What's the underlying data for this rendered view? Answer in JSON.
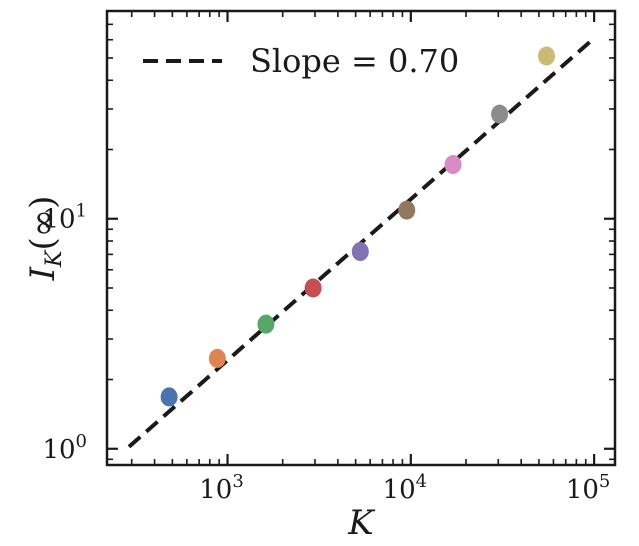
{
  "chart_data": {
    "type": "scatter",
    "title": "",
    "xlabel": "K",
    "ylabel": "I_K(∞)",
    "x_scale": "log",
    "y_scale": "log",
    "xlim": [
      220,
      130000
    ],
    "ylim": [
      0.85,
      80
    ],
    "grid": false,
    "legend_position": "top-left",
    "x_ticks": [
      {
        "value": 1000,
        "base": "10",
        "exp": "3"
      },
      {
        "value": 10000,
        "base": "10",
        "exp": "4"
      },
      {
        "value": 100000,
        "base": "10",
        "exp": "5"
      }
    ],
    "y_ticks": [
      {
        "value": 1,
        "base": "10",
        "exp": "0"
      },
      {
        "value": 10,
        "base": "10",
        "exp": "1"
      }
    ],
    "points": [
      {
        "x": 480,
        "y": 1.68,
        "color": "#4c72b0"
      },
      {
        "x": 880,
        "y": 2.47,
        "color": "#dd8452"
      },
      {
        "x": 1620,
        "y": 3.48,
        "color": "#55a868"
      },
      {
        "x": 2930,
        "y": 5.0,
        "color": "#c44e52"
      },
      {
        "x": 5300,
        "y": 7.2,
        "color": "#8172b3"
      },
      {
        "x": 9500,
        "y": 10.9,
        "color": "#937860"
      },
      {
        "x": 17000,
        "y": 17.2,
        "color": "#da8bc3"
      },
      {
        "x": 30500,
        "y": 28.5,
        "color": "#8c8c8c"
      },
      {
        "x": 55000,
        "y": 51.0,
        "color": "#ccb974"
      }
    ],
    "fit_line": {
      "label": "Slope = 0.70",
      "slope": 0.7,
      "x_start": 290,
      "x_end": 100000,
      "y_start": 1.02,
      "color": "#1a1a1a",
      "style": "dashed"
    }
  }
}
